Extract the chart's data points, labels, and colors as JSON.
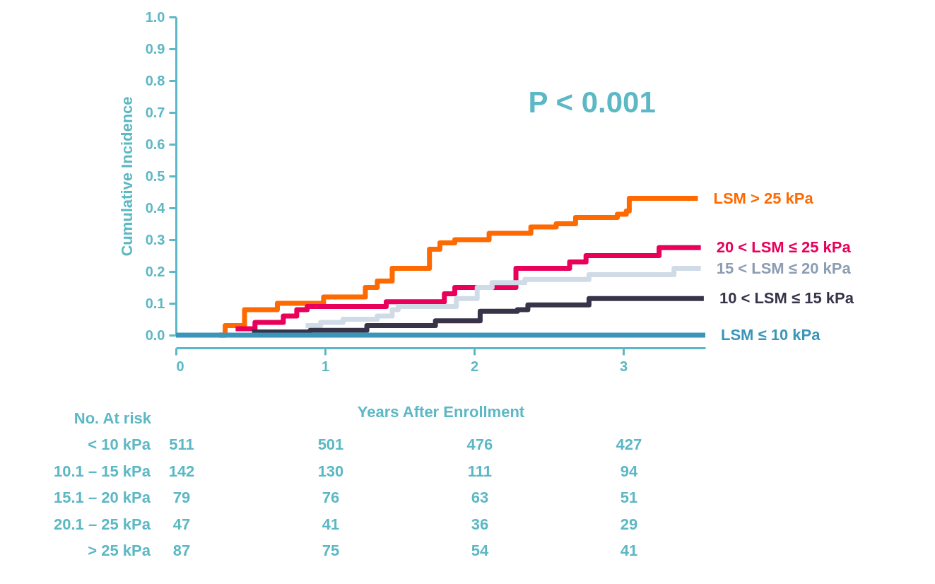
{
  "chart_data": {
    "type": "step",
    "xlabel": "Years After Enrollment",
    "ylabel": "Cumulative Incidence",
    "xlim": [
      0,
      3.55
    ],
    "xticks": [
      0,
      1,
      2,
      3
    ],
    "ylim": [
      0,
      1
    ],
    "yticks": [
      {
        "value": 0,
        "label": "0.0"
      },
      0.1,
      0.2,
      0.3,
      0.4,
      0.5,
      0.6,
      0.7,
      0.8,
      0.9,
      {
        "value": 1,
        "label": "1.0"
      }
    ],
    "grid": false,
    "legend": false,
    "marker": "none",
    "line_style": "solid",
    "series": [
      {
        "name": "LSM > 25 kPa",
        "color": "#ff6a00",
        "x": [
          0.29,
          0.33,
          0.46,
          0.68,
          0.99,
          1.27,
          1.35,
          1.45,
          1.7,
          1.77,
          1.87,
          2.1,
          2.38,
          2.55,
          2.68,
          2.96,
          3.02,
          3.04,
          3.5
        ],
        "values": [
          0,
          0.03,
          0.08,
          0.1,
          0.12,
          0.15,
          0.17,
          0.21,
          0.27,
          0.29,
          0.3,
          0.32,
          0.34,
          0.35,
          0.37,
          0.38,
          0.39,
          0.43,
          0.43
        ]
      },
      {
        "name": "20 < LSM ≤ 25 kPa",
        "color": "#e8005a",
        "x": [
          0.4,
          0.53,
          0.72,
          0.81,
          0.88,
          1.41,
          1.8,
          1.87,
          2.28,
          2.64,
          2.75,
          3.24,
          3.52
        ],
        "values": [
          0.02,
          0.04,
          0.06,
          0.08,
          0.09,
          0.105,
          0.13,
          0.15,
          0.21,
          0.23,
          0.25,
          0.275,
          0.275
        ]
      },
      {
        "name": "15 < LSM ≤ 20 kPa",
        "color": "#cfdbe6",
        "x": [
          0.87,
          0.97,
          1.12,
          1.35,
          1.45,
          1.49,
          1.88,
          2.02,
          2.12,
          2.34,
          2.77,
          3.34,
          3.52
        ],
        "values": [
          0.03,
          0.04,
          0.05,
          0.06,
          0.08,
          0.09,
          0.115,
          0.15,
          0.165,
          0.175,
          0.19,
          0.21,
          0.21
        ]
      },
      {
        "name": "10 < LSM ≤ 15 kPa",
        "color": "#37344a",
        "x": [
          0.51,
          0.9,
          1.28,
          1.74,
          2.04,
          2.29,
          2.36,
          2.77,
          3.54
        ],
        "values": [
          0.01,
          0.015,
          0.03,
          0.045,
          0.075,
          0.08,
          0.095,
          0.115,
          0.115
        ]
      },
      {
        "name": "LSM ≤ 10 kPa",
        "color": "#3a96b9",
        "x": [
          0,
          3.55
        ],
        "values": [
          0,
          0
        ]
      }
    ],
    "annotations": [
      "P < 0.001",
      "No. At risk",
      "< 10 kPa",
      "511",
      "501",
      "476",
      "427",
      "10.1 – 15 kPa",
      "142",
      "130",
      "111",
      "94",
      "15.1 – 20 kPa",
      "79",
      "76",
      "63",
      "51",
      "20.1 – 25 kPa",
      "47",
      "41",
      "36",
      "29",
      "> 25 kPa",
      "87",
      "75",
      "54",
      "41"
    ]
  }
}
